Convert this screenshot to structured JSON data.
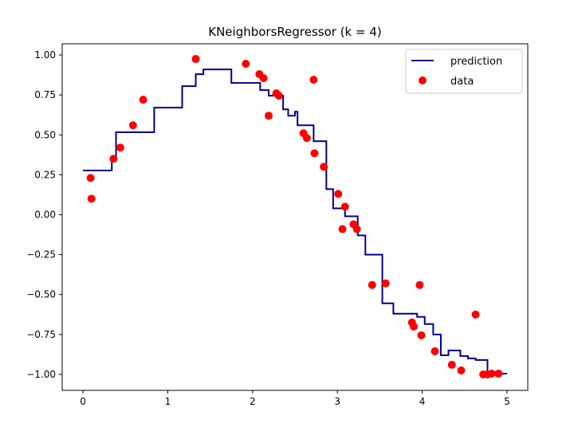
{
  "chart_data": {
    "type": "line",
    "title": "KNeighborsRegressor (k = 4)",
    "xlabel": "",
    "ylabel": "",
    "xlim": [
      -0.245,
      5.245
    ],
    "ylim": [
      -1.1,
      1.07
    ],
    "x_ticks": [
      "0",
      "1",
      "2",
      "3",
      "4",
      "5"
    ],
    "y_ticks": [
      "1.00",
      "0.75",
      "0.50",
      "0.25",
      "0.00",
      "−0.25",
      "−0.50",
      "−0.75",
      "−1.00"
    ],
    "x_tick_values": [
      0,
      1,
      2,
      3,
      4,
      5
    ],
    "y_tick_values": [
      1,
      0.75,
      0.5,
      0.25,
      0,
      -0.25,
      -0.5,
      -0.75,
      -1
    ],
    "grid": false,
    "legend": {
      "placement": "top-right",
      "entries": [
        "prediction",
        "data"
      ]
    },
    "series": [
      {
        "name": "prediction",
        "type": "step",
        "color": "#00008b",
        "x": [
          0,
          0.34,
          0.39,
          0.84,
          1.17,
          1.33,
          1.42,
          1.75,
          2.09,
          2.19,
          2.36,
          2.42,
          2.5,
          2.53,
          2.72,
          2.87,
          2.95,
          3.09,
          3.24,
          3.33,
          3.53,
          3.66,
          3.94,
          4.03,
          4.13,
          4.22,
          4.31,
          4.45,
          4.54,
          4.63,
          4.77,
          5.0
        ],
        "y": [
          0.277,
          0.357,
          0.516,
          0.67,
          0.805,
          0.88,
          0.91,
          0.825,
          0.78,
          0.745,
          0.66,
          0.62,
          0.645,
          0.56,
          0.46,
          0.16,
          0.04,
          -0.01,
          -0.13,
          -0.25,
          -0.555,
          -0.62,
          -0.64,
          -0.685,
          -0.75,
          -0.88,
          -0.85,
          -0.885,
          -0.9,
          -0.91,
          -0.995,
          -0.995
        ]
      },
      {
        "name": "data",
        "type": "scatter",
        "color": "#ff0000",
        "x": [
          0.09,
          0.1,
          0.36,
          0.44,
          0.59,
          0.71,
          1.33,
          1.92,
          2.08,
          2.13,
          2.19,
          2.28,
          2.31,
          2.6,
          2.64,
          2.72,
          2.73,
          2.84,
          3.01,
          3.06,
          3.09,
          3.19,
          3.23,
          3.41,
          3.57,
          3.88,
          3.9,
          3.97,
          3.99,
          4.15,
          4.35,
          4.46,
          4.63,
          4.72,
          4.77,
          4.82,
          4.9
        ],
        "y": [
          0.23,
          0.1,
          0.35,
          0.42,
          0.56,
          0.72,
          0.975,
          0.945,
          0.88,
          0.855,
          0.62,
          0.76,
          0.745,
          0.51,
          0.48,
          0.845,
          0.385,
          0.3,
          0.13,
          -0.09,
          0.05,
          -0.06,
          -0.09,
          -0.44,
          -0.43,
          -0.675,
          -0.7,
          -0.44,
          -0.755,
          -0.855,
          -0.94,
          -0.975,
          -0.625,
          -1.0,
          -1.0,
          -0.995,
          -0.995
        ]
      }
    ]
  }
}
